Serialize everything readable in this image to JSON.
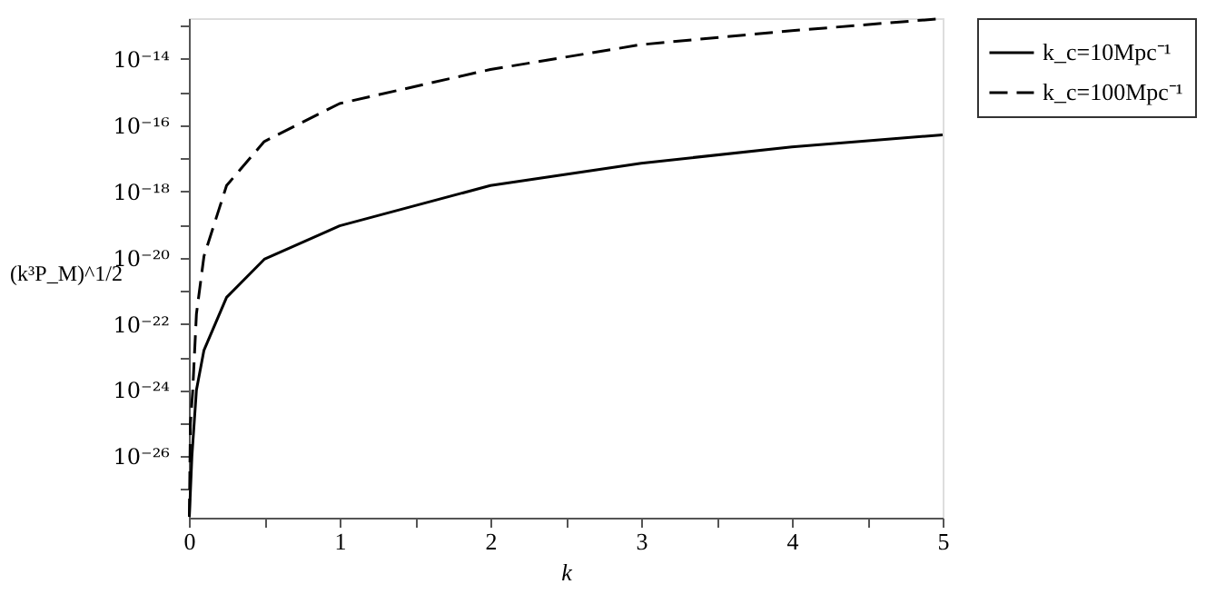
{
  "chart_data": {
    "type": "line",
    "xlabel": "k",
    "ylabel": "(k³P_M)^1/2",
    "log": "y",
    "grid": false,
    "legend": "right",
    "marker": "none",
    "xlim": [
      0,
      5
    ],
    "xticks": [
      0,
      {
        "value": 0.5,
        "label": null
      },
      1,
      {
        "value": 1.5,
        "label": null
      },
      2,
      {
        "value": 2.5,
        "label": null
      },
      3,
      {
        "value": 3.5,
        "label": null
      },
      4,
      {
        "value": 4.5,
        "label": null
      },
      5
    ],
    "ylim": [
      1.4e-28,
      1.7e-13
    ],
    "yticks": [
      {
        "value": 1e-27,
        "label": null
      },
      {
        "value": 1e-26,
        "label": "10⁻²⁶"
      },
      {
        "value": 1e-25,
        "label": null
      },
      {
        "value": 1e-24,
        "label": "10⁻²⁴"
      },
      {
        "value": 1e-23,
        "label": null
      },
      {
        "value": 1e-22,
        "label": "10⁻²²"
      },
      {
        "value": 1e-21,
        "label": null
      },
      {
        "value": 1e-20,
        "label": "10⁻²⁰"
      },
      {
        "value": 1e-19,
        "label": null
      },
      {
        "value": 1e-18,
        "label": "10⁻¹⁸"
      },
      {
        "value": 1e-17,
        "label": null
      },
      {
        "value": 1e-16,
        "label": "10⁻¹⁶"
      },
      {
        "value": 1e-15,
        "label": null
      },
      {
        "value": 1e-14,
        "label": "10⁻¹⁴"
      },
      {
        "value": 1e-13,
        "label": null
      }
    ],
    "series": [
      {
        "name": "k_c=10Mpc⁻¹",
        "color": "#000000",
        "line_style": "solid",
        "x": [
          0.003,
          0.02,
          0.05,
          0.1,
          0.25,
          0.5,
          1,
          2,
          3,
          4,
          5
        ],
        "values": [
          1.5e-28,
          1e-26,
          1e-24,
          1.6e-23,
          6.3e-22,
          8.9e-21,
          9.1e-20,
          1.5e-18,
          7.1e-18,
          2.2e-17,
          5.1e-17
        ]
      },
      {
        "name": "k_c=100Mpc⁻¹",
        "color": "#000000",
        "line_style": "dashed",
        "x": [
          0.003,
          0.01,
          0.025,
          0.05,
          0.1,
          0.25,
          0.5,
          1,
          2,
          3,
          4,
          5
        ],
        "values": [
          1.5e-28,
          1e-25,
          8.9e-25,
          2e-22,
          1.1e-20,
          1.5e-18,
          3.2e-17,
          4.5e-16,
          4.8e-15,
          2.7e-14,
          7.1e-14,
          1.66e-13
        ]
      }
    ]
  }
}
